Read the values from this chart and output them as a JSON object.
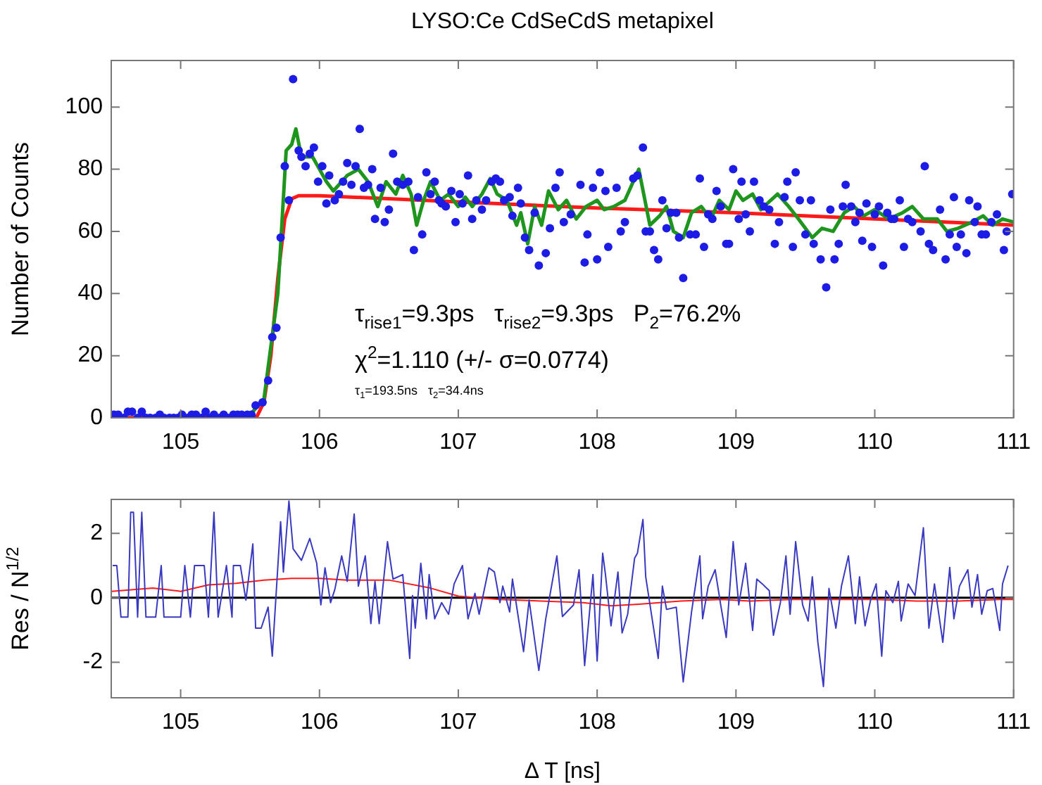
{
  "chart_data": [
    {
      "type": "scatter",
      "title": "LYSO:Ce CdSeCdS metapixel",
      "ylabel": "Number of Counts",
      "xlim": [
        104.5,
        111
      ],
      "xticks": [
        105,
        106,
        107,
        108,
        109,
        110,
        111
      ],
      "ylim": [
        0,
        115
      ],
      "yticks": [
        0,
        20,
        40,
        60,
        80,
        100
      ],
      "legend": false,
      "grid": false,
      "annotations": [
        "τ$_{rise1}$=9.3ps   τ$_{rise2}$=9.3ps   P$_{2}$=76.2%",
        "χ$^{2}$=1.110 (+/- σ=0.0774)",
        "τ$_{1}$=193.5ns   τ$_{2}$=34.4ns"
      ],
      "series": [
        {
          "marker": "circle",
          "color": "#1c1ce6",
          "x": [
            104.52,
            104.55,
            104.59,
            104.62,
            104.65,
            104.69,
            104.72,
            104.75,
            104.78,
            104.82,
            104.85,
            104.88,
            104.92,
            104.95,
            104.98,
            105.01,
            105.05,
            105.08,
            105.11,
            105.15,
            105.18,
            105.21,
            105.24,
            105.28,
            105.31,
            105.34,
            105.38,
            105.41,
            105.44,
            105.48,
            105.51,
            105.54,
            105.59,
            105.63,
            105.66,
            105.69,
            105.72,
            105.75,
            105.78,
            105.81,
            105.85,
            105.87,
            105.9,
            105.93,
            105.96,
            105.99,
            106.02,
            106.05,
            106.07,
            106.11,
            106.14,
            106.17,
            106.2,
            106.23,
            106.26,
            106.29,
            106.32,
            106.35,
            106.38,
            106.4,
            106.44,
            106.47,
            106.5,
            106.53,
            106.56,
            106.6,
            106.64,
            106.68,
            106.71,
            106.74,
            106.77,
            106.8,
            106.83,
            106.86,
            106.88,
            106.91,
            106.95,
            106.98,
            107.01,
            107.03,
            107.07,
            107.1,
            107.13,
            107.17,
            107.2,
            107.24,
            107.27,
            107.3,
            107.33,
            107.37,
            107.39,
            107.43,
            107.45,
            107.48,
            107.51,
            107.55,
            107.58,
            107.63,
            107.66,
            107.7,
            107.73,
            107.76,
            107.81,
            107.88,
            107.91,
            107.93,
            107.97,
            108.0,
            108.02,
            108.06,
            108.08,
            108.14,
            108.17,
            108.2,
            108.26,
            108.29,
            108.33,
            108.35,
            108.38,
            108.41,
            108.44,
            108.47,
            108.5,
            108.53,
            108.57,
            108.59,
            108.62,
            108.67,
            108.71,
            108.74,
            108.77,
            108.8,
            108.83,
            108.86,
            108.89,
            108.93,
            108.95,
            108.98,
            109.02,
            109.04,
            109.07,
            109.1,
            109.13,
            109.17,
            109.2,
            109.24,
            109.28,
            109.31,
            109.35,
            109.37,
            109.41,
            109.43,
            109.46,
            109.5,
            109.54,
            109.56,
            109.61,
            109.65,
            109.68,
            109.71,
            109.74,
            109.77,
            109.79,
            109.83,
            109.86,
            109.89,
            109.91,
            109.94,
            109.98,
            110.0,
            110.03,
            110.06,
            110.09,
            110.12,
            110.14,
            110.18,
            110.21,
            110.24,
            110.27,
            110.33,
            110.36,
            110.39,
            110.42,
            110.47,
            110.51,
            110.54,
            110.57,
            110.59,
            110.62,
            110.66,
            110.68,
            110.72,
            110.74,
            110.77,
            110.8,
            110.84,
            110.88,
            110.93,
            110.95,
            110.99
          ],
          "values": [
            1,
            1,
            0,
            2,
            2,
            0,
            2,
            0,
            0,
            0,
            1,
            0,
            0,
            0,
            0,
            1,
            0,
            1,
            1,
            0,
            2,
            0,
            1,
            0,
            1,
            0,
            1,
            1,
            1,
            1,
            1,
            4,
            5,
            12,
            26,
            29,
            58,
            81,
            70,
            109,
            86,
            84,
            81,
            85,
            87,
            76,
            81,
            69,
            78,
            70,
            72,
            76,
            82,
            75,
            81,
            93,
            74,
            75,
            80,
            64,
            74,
            63,
            67,
            85,
            76,
            75,
            76,
            54,
            71,
            59,
            79,
            72,
            76,
            70,
            69,
            68,
            73,
            63,
            72,
            69,
            78,
            64,
            70,
            67,
            70,
            76,
            77,
            76,
            70,
            71,
            65,
            74,
            69,
            58,
            54,
            66,
            49,
            53,
            61,
            74,
            79,
            63,
            65.5,
            75,
            50,
            59,
            74,
            51,
            79,
            73,
            55,
            74,
            60,
            63,
            77,
            78,
            87,
            60,
            60,
            54,
            51,
            70,
            61,
            66,
            66,
            58,
            45,
            59,
            59,
            77,
            55,
            65.5,
            64,
            73,
            68,
            56,
            56,
            80,
            64,
            76,
            65.5,
            60,
            76,
            70,
            68,
            67,
            56,
            63,
            71,
            76,
            55,
            79,
            70,
            59,
            70,
            56,
            51,
            42,
            67,
            51,
            56,
            68,
            75,
            68,
            63,
            66,
            57,
            69,
            55,
            65.5,
            68,
            49,
            66,
            64,
            64,
            70,
            55,
            64,
            63,
            60,
            81,
            56,
            54,
            67,
            51,
            59,
            71,
            55,
            59,
            53,
            70,
            63,
            68,
            59,
            59,
            63,
            65.5,
            54,
            60,
            72
          ]
        },
        {
          "type": "line",
          "color": "#1e961e",
          "x": [
            105.5,
            105.6,
            105.7,
            105.76,
            105.8,
            105.83,
            105.87,
            105.95,
            106.0,
            106.05,
            106.1,
            106.2,
            106.28,
            106.35,
            106.42,
            106.48,
            106.55,
            106.6,
            106.66,
            106.7,
            106.75,
            106.8,
            106.87,
            106.93,
            107.0,
            107.05,
            107.1,
            107.17,
            107.23,
            107.28,
            107.35,
            107.42,
            107.45,
            107.5,
            107.55,
            107.6,
            107.65,
            107.72,
            107.78,
            107.85,
            107.92,
            108.0,
            108.05,
            108.12,
            108.2,
            108.3,
            108.38,
            108.45,
            108.5,
            108.55,
            108.62,
            108.68,
            108.75,
            108.82,
            108.88,
            108.95,
            109.0,
            109.05,
            109.12,
            109.18,
            109.25,
            109.3,
            109.38,
            109.45,
            109.55,
            109.62,
            109.7,
            109.78,
            109.85,
            109.92,
            110.0,
            110.1,
            110.2,
            110.27,
            110.35,
            110.45,
            110.52,
            110.6,
            110.7,
            110.78,
            110.85,
            110.92,
            111.0
          ],
          "values": [
            1,
            6,
            40,
            86,
            88,
            93,
            84,
            84,
            80,
            76,
            73,
            78,
            80,
            76,
            68,
            76,
            72,
            78,
            72,
            62,
            70,
            76,
            70,
            72,
            68,
            71,
            68,
            72,
            77,
            72,
            70,
            62,
            66,
            56,
            68,
            62,
            73,
            67,
            70,
            64,
            68,
            70,
            67,
            68,
            70,
            80,
            62,
            65,
            68,
            60,
            58,
            66,
            68,
            64,
            70,
            67,
            73,
            70,
            72,
            67,
            70,
            72,
            68,
            64,
            58,
            61,
            60,
            66,
            68,
            65,
            67,
            64,
            66,
            68,
            64,
            64,
            60,
            61,
            63,
            65,
            62,
            64,
            63
          ]
        },
        {
          "type": "line",
          "color": "#ff1a1a",
          "x": [
            104.5,
            105.55,
            105.6,
            105.65,
            105.7,
            105.75,
            105.8,
            105.85,
            106,
            107,
            108,
            109,
            110,
            111
          ],
          "values": [
            0,
            0.5,
            5,
            20,
            45,
            64,
            70.5,
            71.5,
            71.5,
            69.5,
            67.5,
            66,
            64,
            62
          ]
        }
      ]
    },
    {
      "type": "line",
      "xlabel": "Δ T [ns]",
      "ylabel": "Res / N$^{1/2}$",
      "xlim": [
        104.5,
        111
      ],
      "xticks": [
        105,
        106,
        107,
        108,
        109,
        110,
        111
      ],
      "ylim": [
        -3.1,
        3.05
      ],
      "yticks": [
        -2,
        0,
        2
      ],
      "legend": false,
      "grid": false,
      "marker": "none",
      "ref_lines": [
        {
          "axis": "y",
          "value": 0,
          "color": "#000000"
        }
      ],
      "series": [
        {
          "color": "#3a3ac0",
          "x": [
            104.51,
            104.54,
            104.57,
            104.62,
            104.64,
            104.66,
            104.69,
            104.72,
            104.75,
            104.82,
            104.86,
            104.88,
            105.0,
            105.03,
            105.07,
            105.1,
            105.17,
            105.2,
            105.24,
            105.27,
            105.33,
            105.37,
            105.38,
            105.43,
            105.47,
            105.52,
            105.54,
            105.58,
            105.63,
            105.66,
            105.72,
            105.74,
            105.78,
            105.81,
            105.87,
            105.93,
            105.98,
            106.01,
            106.04,
            106.08,
            106.11,
            106.16,
            106.2,
            106.25,
            106.28,
            106.33,
            106.37,
            106.4,
            106.43,
            106.49,
            106.53,
            106.6,
            106.65,
            106.67,
            106.69,
            106.73,
            106.77,
            106.79,
            106.83,
            106.88,
            106.93,
            106.97,
            107.03,
            107.07,
            107.12,
            107.15,
            107.22,
            107.26,
            107.3,
            107.32,
            107.37,
            107.39,
            107.47,
            107.51,
            107.58,
            107.63,
            107.71,
            107.75,
            107.83,
            107.87,
            107.91,
            107.97,
            108.0,
            108.04,
            108.06,
            108.1,
            108.15,
            108.18,
            108.22,
            108.27,
            108.29,
            108.33,
            108.35,
            108.44,
            108.47,
            108.5,
            108.57,
            108.62,
            108.68,
            108.74,
            108.76,
            108.8,
            108.85,
            108.89,
            108.93,
            108.98,
            109.02,
            109.07,
            109.12,
            109.15,
            109.19,
            109.24,
            109.27,
            109.32,
            109.36,
            109.39,
            109.43,
            109.48,
            109.52,
            109.55,
            109.59,
            109.63,
            109.67,
            109.72,
            109.76,
            109.81,
            109.86,
            109.89,
            109.93,
            109.97,
            110.01,
            110.05,
            110.08,
            110.13,
            110.17,
            110.19,
            110.24,
            110.29,
            110.3,
            110.35,
            110.39,
            110.43,
            110.49,
            110.54,
            110.57,
            110.61,
            110.67,
            110.7,
            110.74,
            110.77,
            110.81,
            110.85,
            110.9,
            110.92,
            110.96
          ],
          "values": [
            1.0,
            1.0,
            -0.6,
            -0.6,
            2.65,
            2.65,
            -0.6,
            2.65,
            -0.6,
            -0.6,
            1.0,
            -0.6,
            -0.6,
            1.0,
            -0.6,
            1.0,
            1.0,
            -0.6,
            2.65,
            -0.6,
            1.0,
            -0.6,
            1.0,
            1.0,
            -0.07,
            1.67,
            -0.94,
            -0.94,
            -0.29,
            -1.81,
            2.36,
            0.8,
            3.0,
            1.52,
            1.16,
            1.84,
            1.07,
            -0.22,
            0.93,
            -0.15,
            0.25,
            1.3,
            0.51,
            2.6,
            0.36,
            1.3,
            -0.8,
            0.51,
            -0.8,
            1.74,
            0.58,
            0.72,
            -1.88,
            0.07,
            -0.94,
            1.07,
            -0.65,
            0.72,
            -0.65,
            -0.15,
            -0.51,
            0.43,
            1.0,
            -0.65,
            0.14,
            -0.51,
            0.93,
            0.8,
            -0.15,
            0.36,
            -0.44,
            0.58,
            -1.67,
            -0.07,
            -2.25,
            -0.65,
            1.3,
            -0.58,
            -0.22,
            0.87,
            -2.1,
            0.72,
            -1.96,
            1.38,
            0.72,
            -0.87,
            0.8,
            -1.09,
            -0.51,
            1.23,
            1.38,
            2.43,
            0.65,
            -1.88,
            0.36,
            -0.36,
            -0.29,
            -2.61,
            -0.44,
            1.3,
            -0.65,
            0.36,
            0.87,
            -0.22,
            -1.23,
            1.74,
            -0.22,
            1.07,
            -1.01,
            0.58,
            0.43,
            0.22,
            -1.16,
            -0.15,
            1.3,
            -0.51,
            1.74,
            -0.22,
            -0.72,
            0.65,
            -1.38,
            -2.75,
            0.29,
            -0.94,
            0.36,
            1.3,
            -0.8,
            0.65,
            -0.87,
            -0.07,
            0.43,
            -1.81,
            0.22,
            -0.15,
            0.51,
            -0.72,
            0.43,
            0.07,
            0.43,
            2.17,
            -0.94,
            0.43,
            -1.38,
            0.94,
            -0.65,
            0.36,
            0.87,
            -0.29,
            0.72,
            -0.51,
            0.22,
            0.29,
            -1.01,
            0.43,
            1.0
          ]
        },
        {
          "color": "#ff1a1a",
          "x": [
            104.5,
            104.8,
            105.0,
            105.2,
            105.4,
            105.6,
            105.8,
            106.0,
            106.2,
            106.5,
            106.8,
            107.0,
            107.3,
            107.6,
            107.9,
            108.1,
            108.3,
            108.6,
            108.9,
            109.1,
            109.4,
            109.7,
            110.0,
            110.3,
            110.6,
            110.9,
            111.0
          ],
          "values": [
            0.2,
            0.3,
            0.2,
            0.4,
            0.45,
            0.55,
            0.6,
            0.6,
            0.55,
            0.55,
            0.3,
            0.05,
            -0.05,
            -0.1,
            -0.15,
            -0.25,
            -0.2,
            -0.1,
            -0.05,
            -0.1,
            -0.05,
            -0.05,
            -0.05,
            -0.1,
            -0.1,
            -0.05,
            -0.05
          ]
        }
      ]
    }
  ]
}
